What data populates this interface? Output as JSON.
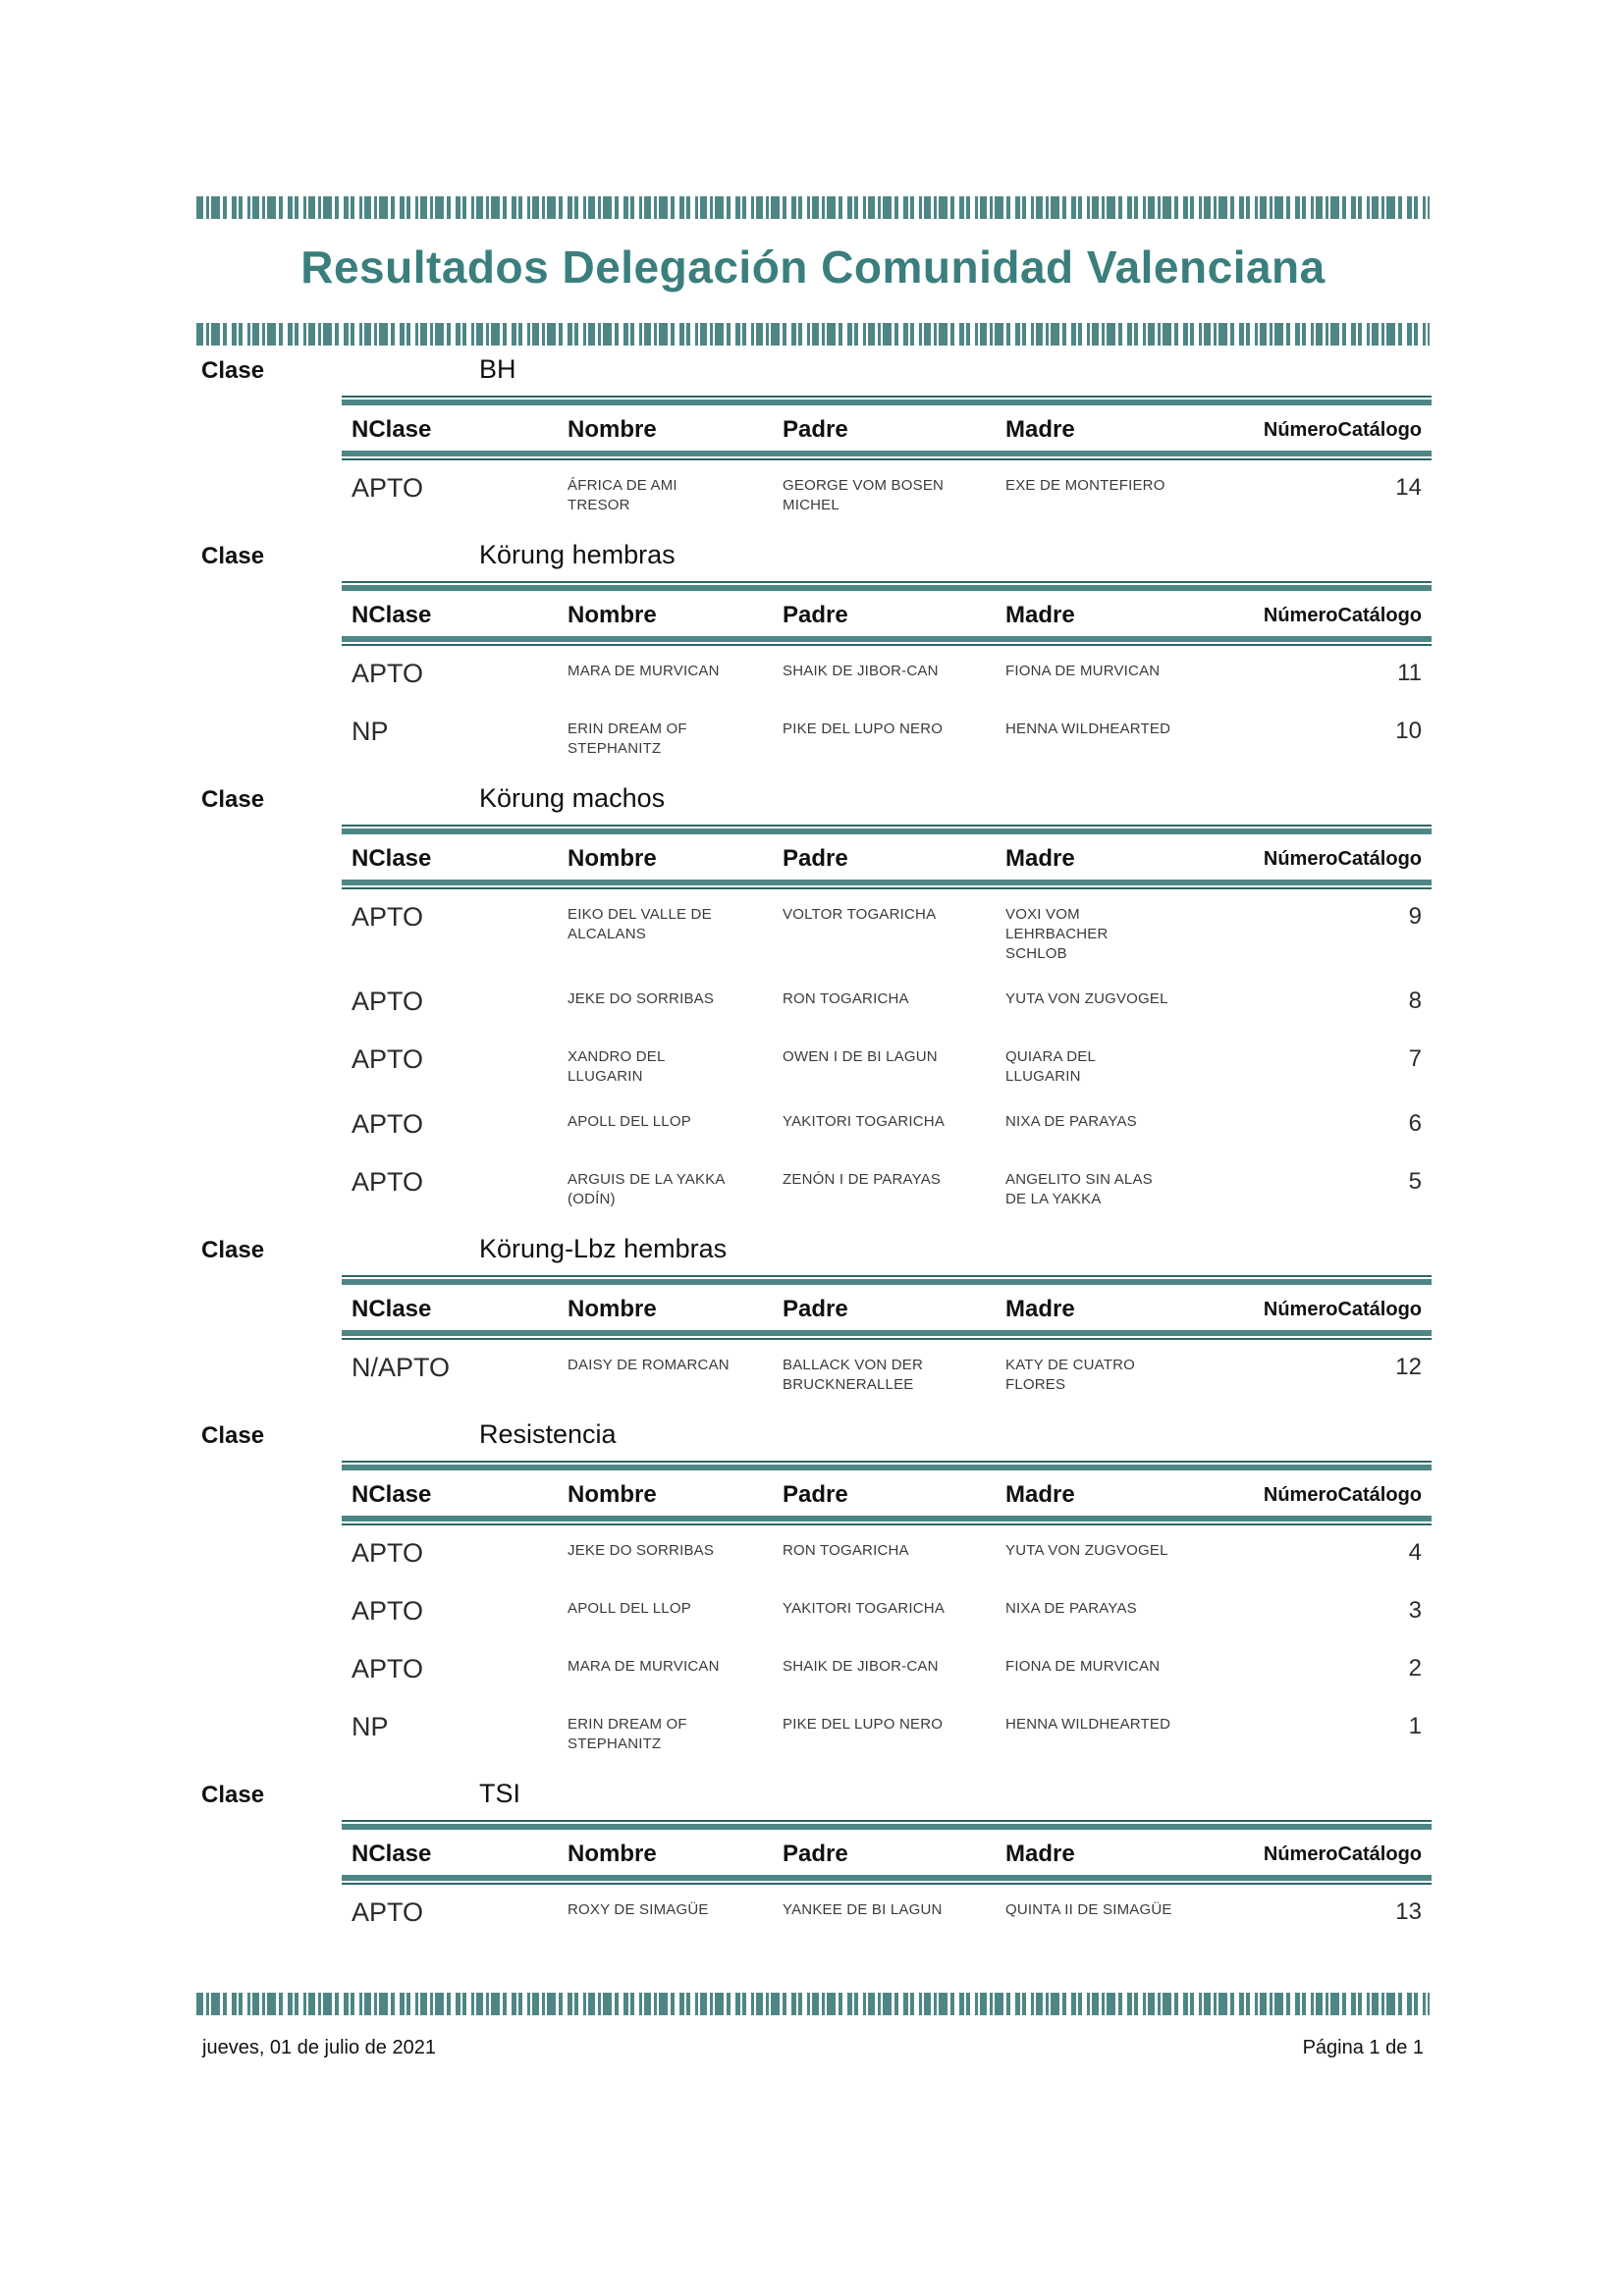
{
  "title": "Resultados Delegación Comunidad Valenciana",
  "labels": {
    "clase": "Clase"
  },
  "columns": [
    "NClase",
    "Nombre",
    "Padre",
    "Madre",
    "NúmeroCatálogo"
  ],
  "sections": [
    {
      "clase": "BH",
      "rows": [
        {
          "nclase": "APTO",
          "nombre": "ÁFRICA DE AMI TRESOR",
          "padre": "GEORGE VOM BOSEN MICHEL",
          "madre": "EXE DE MONTEFIERO",
          "numero": "14"
        }
      ]
    },
    {
      "clase": "Körung hembras",
      "rows": [
        {
          "nclase": "APTO",
          "nombre": "MARA DE MURVICAN",
          "padre": "SHAIK DE JIBOR-CAN",
          "madre": "FIONA DE MURVICAN",
          "numero": "11"
        },
        {
          "nclase": "NP",
          "nombre": "ERIN DREAM OF STEPHANITZ",
          "padre": "PIKE DEL LUPO NERO",
          "madre": "HENNA WILDHEARTED",
          "numero": "10"
        }
      ]
    },
    {
      "clase": "Körung machos",
      "rows": [
        {
          "nclase": "APTO",
          "nombre": "EIKO DEL VALLE DE ALCALANS",
          "padre": "VOLTOR TOGARICHA",
          "madre": "VOXI VOM LEHRBACHER SCHLOB",
          "numero": "9"
        },
        {
          "nclase": "APTO",
          "nombre": "JEKE DO SORRIBAS",
          "padre": "RON TOGARICHA",
          "madre": "YUTA VON ZUGVOGEL",
          "numero": "8"
        },
        {
          "nclase": "APTO",
          "nombre": "XANDRO DEL LLUGARIN",
          "padre": "OWEN I DE BI LAGUN",
          "madre": "QUIARA DEL LLUGARIN",
          "numero": "7"
        },
        {
          "nclase": "APTO",
          "nombre": "APOLL DEL LLOP",
          "padre": "YAKITORI TOGARICHA",
          "madre": "NIXA DE PARAYAS",
          "numero": "6"
        },
        {
          "nclase": "APTO",
          "nombre": "ARGUIS DE LA YAKKA (ODÍN)",
          "padre": "ZENÓN I DE PARAYAS",
          "madre": "ANGELITO SIN ALAS DE LA YAKKA",
          "numero": "5"
        }
      ]
    },
    {
      "clase": "Körung-Lbz hembras",
      "rows": [
        {
          "nclase": "N/APTO",
          "nombre": "DAISY DE ROMARCAN",
          "padre": "BALLACK VON DER BRUCKNERALLEE",
          "madre": "KATY DE CUATRO FLORES",
          "numero": "12"
        }
      ]
    },
    {
      "clase": "Resistencia",
      "rows": [
        {
          "nclase": "APTO",
          "nombre": "JEKE DO SORRIBAS",
          "padre": "RON TOGARICHA",
          "madre": "YUTA VON ZUGVOGEL",
          "numero": "4"
        },
        {
          "nclase": "APTO",
          "nombre": "APOLL DEL LLOP",
          "padre": "YAKITORI TOGARICHA",
          "madre": "NIXA DE PARAYAS",
          "numero": "3"
        },
        {
          "nclase": "APTO",
          "nombre": "MARA DE MURVICAN",
          "padre": "SHAIK DE JIBOR-CAN",
          "madre": "FIONA DE MURVICAN",
          "numero": "2"
        },
        {
          "nclase": "NP",
          "nombre": "ERIN DREAM OF STEPHANITZ",
          "padre": "PIKE DEL LUPO NERO",
          "madre": "HENNA WILDHEARTED",
          "numero": "1"
        }
      ]
    },
    {
      "clase": "TSI",
      "rows": [
        {
          "nclase": "APTO",
          "nombre": "ROXY DE SIMAGÜE",
          "padre": "YANKEE DE BI LAGUN",
          "madre": "QUINTA II DE SIMAGÜE",
          "numero": "13"
        }
      ]
    }
  ],
  "footer": {
    "date": "jueves, 01 de julio de 2021",
    "page": "Página 1 de 1"
  },
  "colors": {
    "teal_band": "#4e8686",
    "title_teal": "#3a7f7e"
  }
}
